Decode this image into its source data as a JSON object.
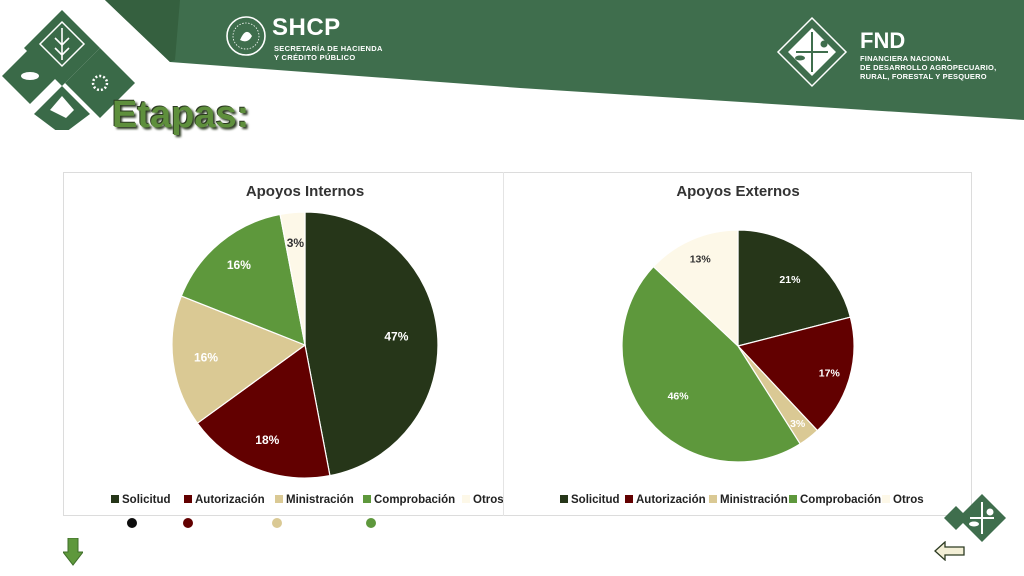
{
  "header": {
    "shcp_name": "SHCP",
    "shcp_sub1": "SECRETARÍA DE HACIENDA",
    "shcp_sub2": "Y CRÉDITO PÚBLICO",
    "fnd_name": "FND",
    "fnd_sub1": "FINANCIERA NACIONAL",
    "fnd_sub2": "DE DESARROLLO AGROPECUARIO,",
    "fnd_sub3": "RURAL, FORESTAL Y PESQUERO",
    "banner_color": "#3f6e4d"
  },
  "page": {
    "title": "Etapas:"
  },
  "colors": {
    "Solicitud": "#263619",
    "Autorización": "#620000",
    "Ministración": "#dac994",
    "Comprobación": "#5e983c",
    "Otros": "#fdf8e8"
  },
  "chart_data": [
    {
      "type": "pie",
      "title": "Apoyos Internos",
      "categories": [
        "Solicitud",
        "Autorización",
        "Ministración",
        "Comprobación",
        "Otros"
      ],
      "values": [
        47,
        18,
        16,
        16,
        3
      ],
      "labels": [
        "47%",
        "18%",
        "16%",
        "16%",
        "3%"
      ],
      "legend": "bottom"
    },
    {
      "type": "pie",
      "title": "Apoyos Externos",
      "categories": [
        "Solicitud",
        "Autorización",
        "Ministración",
        "Comprobación",
        "Otros"
      ],
      "values": [
        21,
        17,
        3,
        46,
        13
      ],
      "labels": [
        "21%",
        "17%",
        "3%",
        "46%",
        "13%"
      ],
      "legend": "bottom"
    }
  ],
  "icons": {
    "down_arrow": "down-arrow-icon",
    "back_arrow": "left-arrow-icon",
    "fnd_logo": "fnd-logo-icon",
    "shcp_seal": "national-seal-icon"
  }
}
